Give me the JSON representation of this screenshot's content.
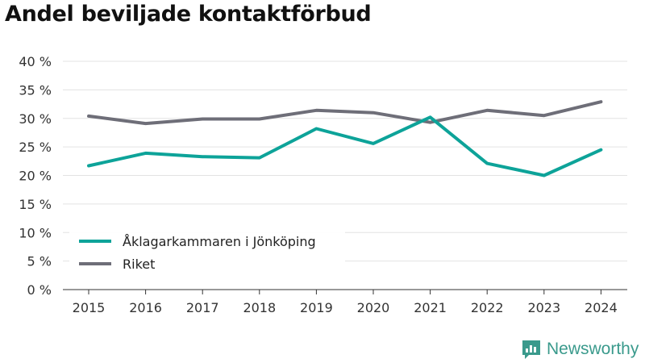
{
  "title": "Andel beviljade kontaktförbud",
  "brand": {
    "name": "Newsworthy",
    "icon": "newsworthy-logo-icon",
    "color": "#3a9a8c"
  },
  "chart_data": {
    "type": "line",
    "title": "Andel beviljade kontaktförbud",
    "categories": [
      "2015",
      "2016",
      "2017",
      "2018",
      "2019",
      "2020",
      "2021",
      "2022",
      "2023",
      "2024"
    ],
    "ylim": [
      0,
      40
    ],
    "yticks": [
      0,
      5,
      10,
      15,
      20,
      25,
      30,
      35,
      40
    ],
    "ytick_labels": [
      "0 %",
      "5 %",
      "10 %",
      "15 %",
      "20 %",
      "25 %",
      "30 %",
      "35 %",
      "40 %"
    ],
    "grid": true,
    "legend_position": "bottom-left",
    "series": [
      {
        "name": "Åklagarkammaren i Jönköping",
        "color": "#0da399",
        "values": [
          21.7,
          23.9,
          23.3,
          23.1,
          28.2,
          25.6,
          30.2,
          22.1,
          20.0,
          24.5
        ]
      },
      {
        "name": "Riket",
        "color": "#6e6e78",
        "values": [
          30.4,
          29.1,
          29.9,
          29.9,
          31.4,
          31.0,
          29.3,
          31.4,
          30.5,
          32.9
        ]
      }
    ]
  }
}
